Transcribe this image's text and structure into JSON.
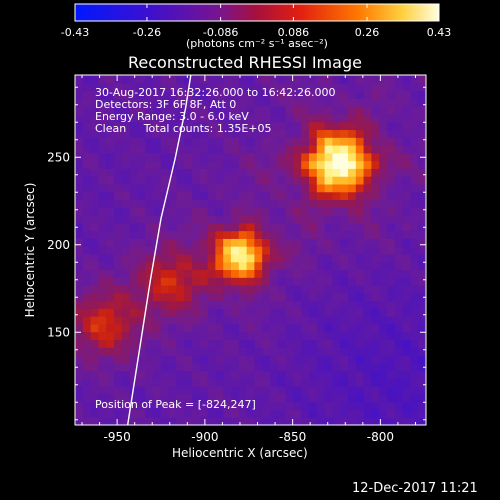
{
  "colorbar": {
    "ticks": [
      "-0.43",
      "-0.26",
      "-0.086",
      "0.086",
      "0.26",
      "0.43"
    ],
    "tick_values": [
      -0.43,
      -0.26,
      -0.086,
      0.086,
      0.26,
      0.43
    ],
    "unit_label": "(photons cm⁻² s⁻¹ asec⁻²)"
  },
  "annotations": {
    "time_range": "30-Aug-2017 16:32:26.000 to 16:42:26.000",
    "detectors": "Detectors: 3F 6F 8F, Att 0",
    "energy_range": "Energy Range: 3.0 - 6.0 keV",
    "clean_line": "Clean     Total counts: 1.35E+05",
    "peak_position": "Position of Peak = [-824,247]"
  },
  "footer": {
    "timestamp": "12-Dec-2017 11:21"
  },
  "colors": {
    "background": "#000000",
    "axes": "#ffffff",
    "colormap": [
      "#0000ff",
      "#3a00a0",
      "#5a1fa0",
      "#8a1090",
      "#c81c1c",
      "#ff7a00",
      "#ffd24a",
      "#ffffe0"
    ]
  },
  "chart_data": {
    "type": "heatmap",
    "title": "Reconstructed RHESSI Image",
    "xlabel": "Heliocentric X (arcsec)",
    "ylabel": "Heliocentric Y (arcsec)",
    "xlim": [
      -974,
      -774
    ],
    "ylim": [
      97,
      297
    ],
    "x_ticks": [
      -950,
      -900,
      -850,
      -800
    ],
    "y_ticks": [
      150,
      200,
      250
    ],
    "x_tick_labels": [
      "-950",
      "-900",
      "-850",
      "-800"
    ],
    "y_tick_labels": [
      "150",
      "200",
      "250"
    ],
    "value_range": [
      -0.43,
      0.43
    ],
    "sources": [
      {
        "x": -824,
        "y": 247,
        "peak": 0.43
      },
      {
        "x": -880,
        "y": 194,
        "peak": 0.34
      },
      {
        "x": -920,
        "y": 180,
        "peak": 0.06
      },
      {
        "x": -957,
        "y": 155,
        "peak": 0.08
      }
    ],
    "limb_curve": [
      [
        -944,
        97
      ],
      [
        -931,
        180
      ],
      [
        -925,
        215
      ],
      [
        -917,
        249
      ],
      [
        -911,
        278
      ],
      [
        -908,
        297
      ]
    ]
  }
}
